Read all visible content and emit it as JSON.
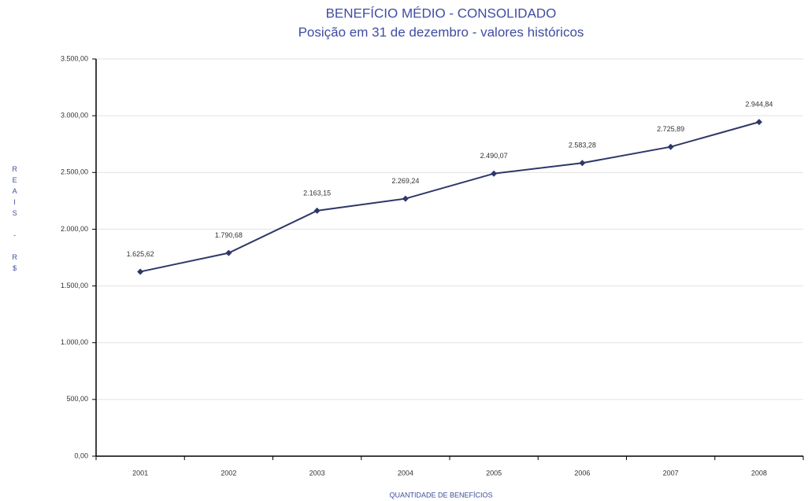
{
  "chart_data": {
    "type": "line",
    "title": "BENEFÍCIO MÉDIO - CONSOLIDADO",
    "subtitle": "Posição em 31 de dezembro - valores históricos",
    "y_label": "REAIS - R$",
    "x_label": "QUANTIDADE DE BENEFÍCIOS",
    "categories": [
      "2001",
      "2002",
      "2003",
      "2004",
      "2005",
      "2006",
      "2007",
      "2008"
    ],
    "values": [
      1625.62,
      1790.68,
      2163.15,
      2269.24,
      2490.07,
      2583.28,
      2725.89,
      2944.84
    ],
    "value_labels": [
      "1.625,62",
      "1.790,68",
      "2.163,15",
      "2.269,24",
      "2.490,07",
      "2.583,28",
      "2.725,89",
      "2.944,84"
    ],
    "color": "#2e3768",
    "ylim": [
      0,
      3500
    ],
    "yticks": [
      {
        "value": 0,
        "label": "0,00"
      },
      {
        "value": 500,
        "label": "500,00"
      },
      {
        "value": 1000,
        "label": "1.000,00"
      },
      {
        "value": 1500,
        "label": "1.500,00"
      },
      {
        "value": 2000,
        "label": "2.000,00"
      },
      {
        "value": 2500,
        "label": "2.500,00"
      },
      {
        "value": 3000,
        "label": "3.000,00"
      },
      {
        "value": 3500,
        "label": "3.500,00"
      }
    ],
    "grid": true
  }
}
